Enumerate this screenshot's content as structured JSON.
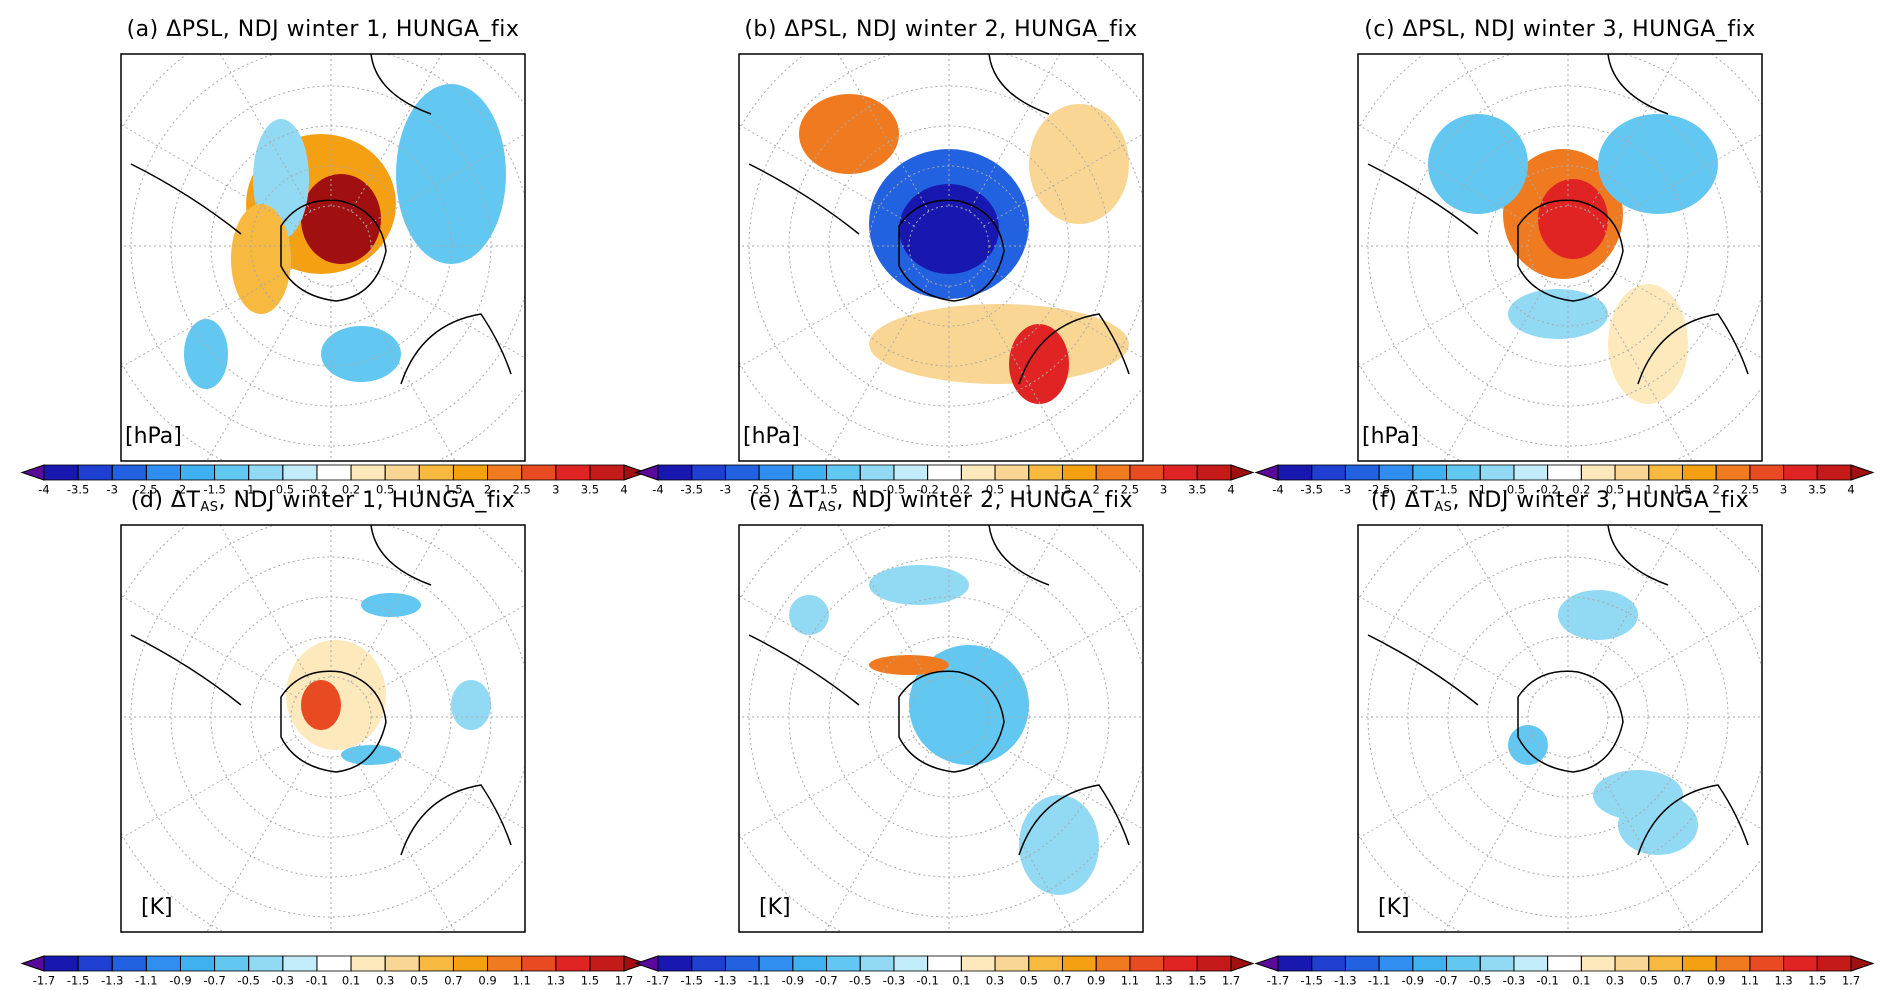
{
  "panels": [
    {
      "title": {
        "text": "(a) ΔPSL, NDJ winter 1, HUNGA_fix"
      },
      "unit": "[hPa]"
    },
    {
      "title": {
        "text": "(b) ΔPSL, NDJ winter 2, HUNGA_fix"
      },
      "unit": "[hPa]"
    },
    {
      "title": {
        "text": "(c) ΔPSL, NDJ winter 3, HUNGA_fix"
      },
      "unit": "[hPa]"
    },
    {
      "title": {
        "text": "(d) ΔT",
        "sub": "AS",
        "rest": ", NDJ winter 1, HUNGA_fix"
      },
      "unit": "[K]"
    },
    {
      "title": {
        "text": "(e) ΔT",
        "sub": "AS",
        "rest": ", NDJ winter 2, HUNGA_fix"
      },
      "unit": "[K]"
    },
    {
      "title": {
        "text": "(f) ΔT",
        "sub": "AS",
        "rest": ", NDJ winter 3, HUNGA_fix"
      },
      "unit": "[K]"
    }
  ],
  "colorbars": [
    {
      "levels": [
        -4,
        -3.5,
        -3,
        -2.5,
        -2,
        -1.5,
        -1,
        -0.5,
        -0.2,
        0.2,
        0.5,
        1,
        1.5,
        2,
        2.5,
        3,
        3.5,
        4
      ]
    },
    {
      "levels": [
        -1.7,
        -1.5,
        -1.3,
        -1.1,
        -0.9,
        -0.7,
        -0.5,
        -0.3,
        -0.1,
        0.1,
        0.3,
        0.5,
        0.7,
        0.9,
        1.1,
        1.3,
        1.5,
        1.7
      ]
    }
  ],
  "colors": [
    "#5a0a9a",
    "#1818b0",
    "#1e3fd0",
    "#2262e0",
    "#2f8ef0",
    "#3fb0f0",
    "#62c8f2",
    "#92daf4",
    "#c2ecfa",
    "#ffffff",
    "#fde9bc",
    "#fad694",
    "#f7b940",
    "#f5a012",
    "#f07a20",
    "#e84a22",
    "#e02424",
    "#c41a1a",
    "#a01010"
  ]
}
